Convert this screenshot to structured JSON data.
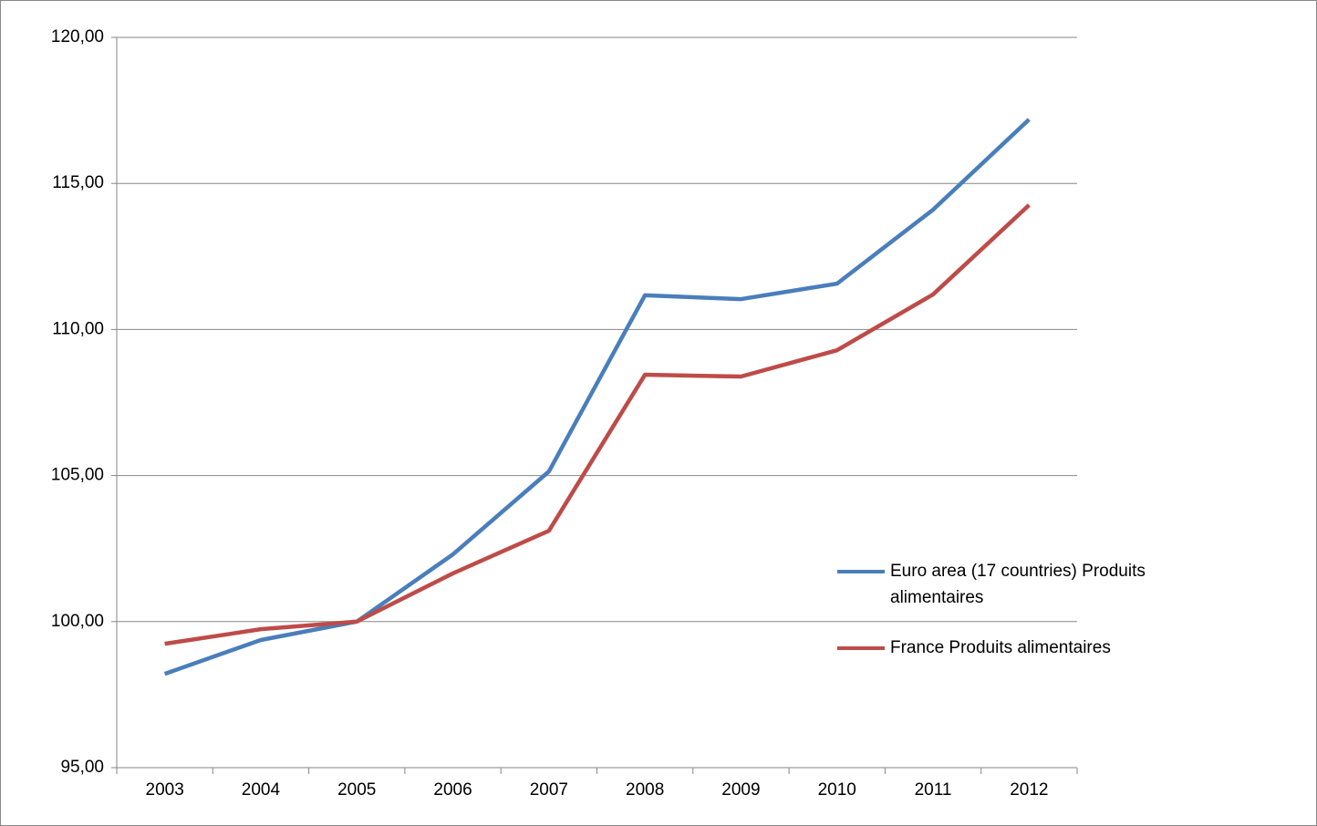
{
  "chart_data": {
    "type": "line",
    "categories": [
      "2003",
      "2004",
      "2005",
      "2006",
      "2007",
      "2008",
      "2009",
      "2010",
      "2011",
      "2012"
    ],
    "series": [
      {
        "name": "Euro area (17 countries) Produits alimentaires",
        "color": "#4a7ebb",
        "values": [
          98.21,
          99.37,
          100,
          102.3,
          105.14,
          111.17,
          111.04,
          111.57,
          114.1,
          117.19
        ]
      },
      {
        "name": "France Produits alimentaires",
        "color": "#be4b48",
        "values": [
          99.24,
          99.74,
          100,
          101.65,
          103.11,
          108.45,
          108.39,
          109.29,
          111.2,
          114.26
        ]
      }
    ],
    "ylim": [
      95,
      120
    ],
    "yticks": [
      {
        "value": 95,
        "label": "95,00"
      },
      {
        "value": 100,
        "label": "100,00"
      },
      {
        "value": 105,
        "label": "105,00"
      },
      {
        "value": 110,
        "label": "110,00"
      },
      {
        "value": 115,
        "label": "115,00"
      },
      {
        "value": 120,
        "label": "120,00"
      }
    ],
    "grid": true,
    "legend": "right"
  }
}
